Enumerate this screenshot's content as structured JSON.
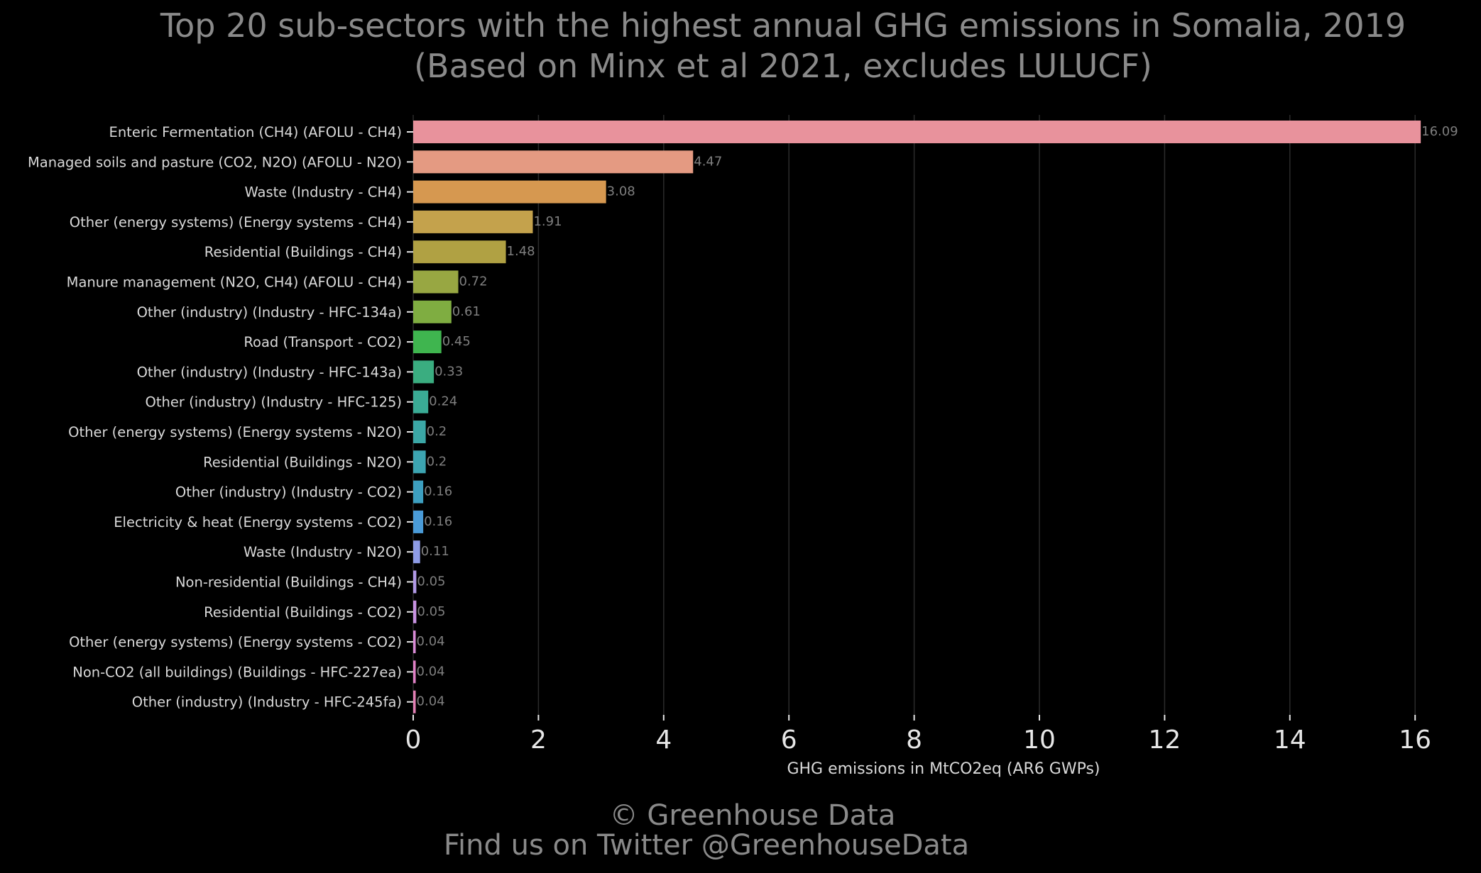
{
  "chart_data": {
    "type": "bar",
    "orientation": "horizontal",
    "title": "Top 20 sub-sectors with the highest annual GHG emissions in Somalia, 2019",
    "subtitle": "(Based on Minx et al 2021, excludes LULUCF)",
    "xlabel": "GHG emissions in MtCO2eq (AR6 GWPs)",
    "ylabel": "",
    "xlim": [
      0,
      16.5
    ],
    "xticks": [
      0,
      2,
      4,
      6,
      8,
      10,
      12,
      14,
      16
    ],
    "grid": "vertical",
    "categories": [
      "Enteric Fermentation (CH4) (AFOLU - CH4)",
      "Managed soils and pasture (CO2, N2O) (AFOLU - N2O)",
      "Waste (Industry - CH4)",
      "Other (energy systems) (Energy systems - CH4)",
      "Residential (Buildings - CH4)",
      "Manure management (N2O, CH4) (AFOLU - CH4)",
      "Other (industry) (Industry - HFC-134a)",
      "Road (Transport - CO2)",
      "Other (industry) (Industry - HFC-143a)",
      "Other (industry) (Industry - HFC-125)",
      "Other (energy systems) (Energy systems - N2O)",
      "Residential (Buildings - N2O)",
      "Other (industry) (Industry - CO2)",
      "Electricity & heat (Energy systems - CO2)",
      "Waste (Industry - N2O)",
      "Non-residential (Buildings - CH4)",
      "Residential (Buildings - CO2)",
      "Other (energy systems) (Energy systems - CO2)",
      "Non-CO2 (all buildings) (Buildings - HFC-227ea)",
      "Other (industry) (Industry - HFC-245fa)"
    ],
    "values": [
      16.09,
      4.47,
      3.08,
      1.91,
      1.48,
      0.72,
      0.61,
      0.45,
      0.33,
      0.24,
      0.2,
      0.2,
      0.16,
      0.16,
      0.11,
      0.05,
      0.05,
      0.04,
      0.04,
      0.04
    ],
    "value_labels": [
      "16.09",
      "4.47",
      "3.08",
      "1.91",
      "1.48",
      "0.72",
      "0.61",
      "0.45",
      "0.33",
      "0.24",
      "0.2",
      "0.2",
      "0.16",
      "0.16",
      "0.11",
      "0.05",
      "0.05",
      "0.04",
      "0.04",
      "0.04"
    ],
    "colors": [
      "#e8929c",
      "#e49a82",
      "#d69850",
      "#c4a24c",
      "#b0a143",
      "#98a742",
      "#7fad41",
      "#3fb54f",
      "#3aad80",
      "#3aab95",
      "#3ba7a6",
      "#3ca4b1",
      "#3d9fc0",
      "#4a9bd8",
      "#8e9ce6",
      "#b199e6",
      "#c892e2",
      "#d88ad6",
      "#e080c6",
      "#e27fb4"
    ],
    "background": "#000000"
  },
  "footer": {
    "credit": "© Greenhouse Data",
    "twitter": "Find us on Twitter @GreenhouseData"
  }
}
